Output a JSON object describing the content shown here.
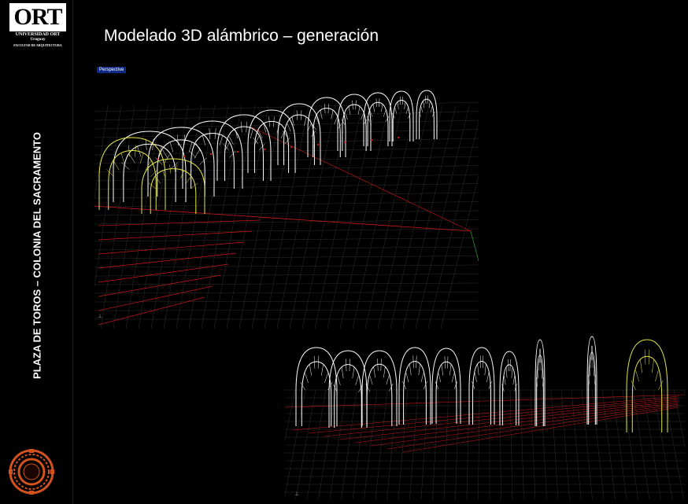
{
  "logo": {
    "mark": "ORT",
    "line1": "UNIVERSIDAD ORT",
    "line2": "Uruguay",
    "line3": "FACULTAD DE ARQUITECTURA"
  },
  "sidebar": {
    "vertical_title": "PLAZA DE TOROS – COLONIA DEL SACRAMENTO"
  },
  "slide": {
    "title": "Modelado 3D alámbrico – generación"
  },
  "viewport_top": {
    "tag": "Perspective"
  },
  "colors": {
    "background": "#000000",
    "wire_white": "#ffffff",
    "wire_yellow": "#e6e64a",
    "wire_red": "#d01818",
    "grid": "#3a3a3a",
    "emblem": "#d2521e"
  },
  "icons": [
    "ort-logo",
    "plaza-emblem-icon",
    "axis-icon"
  ]
}
